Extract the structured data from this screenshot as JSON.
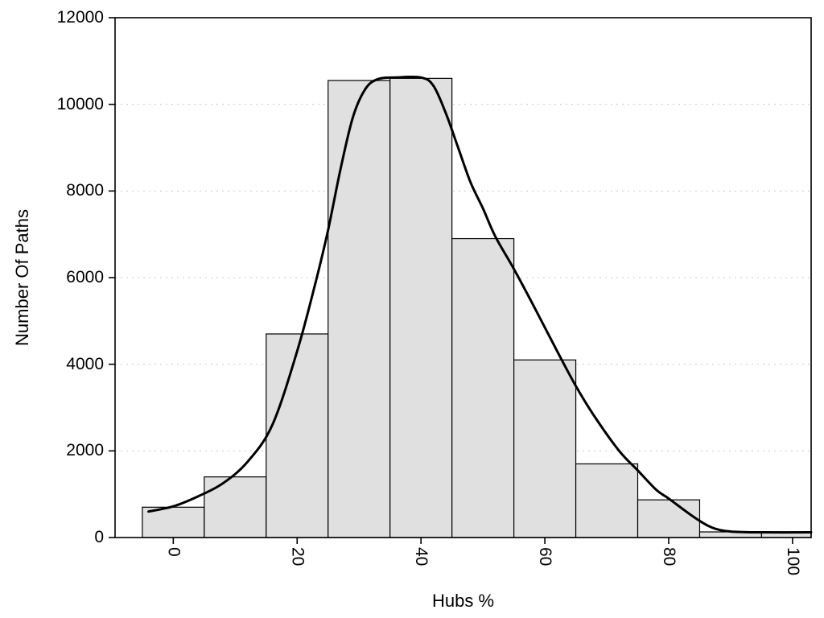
{
  "chart_data": {
    "type": "bar",
    "subtype": "histogram-with-density-curve",
    "title": "",
    "xlabel": "Hubs %",
    "ylabel": "Number Of Paths",
    "xlim": [
      -9.4,
      103
    ],
    "ylim": [
      0,
      12000
    ],
    "xticks": [
      0,
      20,
      40,
      60,
      80,
      100
    ],
    "yticks": [
      0,
      2000,
      4000,
      6000,
      8000,
      10000,
      12000
    ],
    "grid": "horizontal-dotted",
    "legend": "none",
    "bin_width": 10,
    "categories": [
      0,
      10,
      20,
      30,
      40,
      50,
      60,
      70,
      80,
      90,
      100
    ],
    "values": [
      700,
      1400,
      4700,
      10550,
      10600,
      6900,
      4100,
      1700,
      870,
      130,
      130
    ],
    "curve": {
      "name": "smoothed-density-line",
      "x": [
        -4,
        0,
        4,
        8,
        12,
        16,
        20,
        23,
        25,
        27,
        29,
        31,
        33,
        36,
        40,
        42,
        44,
        46,
        48,
        50,
        52,
        55,
        58,
        62,
        65,
        68,
        72,
        75,
        78,
        80,
        84,
        87,
        90,
        95,
        103
      ],
      "y": [
        600,
        720,
        950,
        1250,
        1750,
        2600,
        4300,
        5900,
        7100,
        8500,
        9700,
        10350,
        10580,
        10620,
        10620,
        10430,
        9800,
        9000,
        8200,
        7600,
        6950,
        6200,
        5400,
        4300,
        3500,
        2800,
        2000,
        1550,
        1100,
        900,
        480,
        230,
        140,
        120,
        120
      ]
    },
    "colors": {
      "background": "#ffffff",
      "bar_fill": "#e0e0e0",
      "bar_stroke": "#000000",
      "curve": "#000000",
      "grid": "#c8c8c8",
      "border": "#000000",
      "text": "#000000"
    }
  }
}
